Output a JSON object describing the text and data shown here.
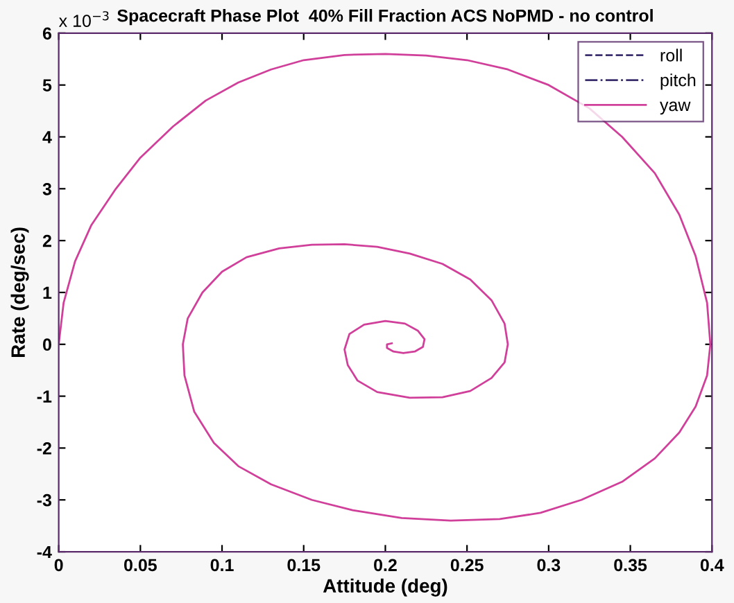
{
  "chart_data": {
    "type": "line",
    "title": "Spacecraft Phase Plot  40% Fill Fraction ACS NoPMD - no control",
    "xlabel": "Attitude (deg)",
    "ylabel": "Rate (deg/sec)",
    "annotations": [
      "x 10$^{−3}$"
    ],
    "xlim": [
      0,
      0.4
    ],
    "ylim": [
      -4,
      6
    ],
    "xticks": [
      0,
      0.05,
      0.1,
      0.15,
      0.2,
      0.25,
      0.3,
      0.35,
      0.4
    ],
    "yticks": [
      -4,
      -3,
      -2,
      -1,
      0,
      1,
      2,
      3,
      4,
      5,
      6
    ],
    "grid": false,
    "legend": "top right",
    "series": [
      {
        "name": "roll",
        "color": "#3c2f6e",
        "line_style": "dashed"
      },
      {
        "name": "pitch",
        "color": "#3c2f6e",
        "line_style": "dashdot"
      },
      {
        "name": "yaw",
        "color": "#d0409a",
        "line_style": "solid",
        "x": [
          0,
          0.003,
          0.01,
          0.02,
          0.035,
          0.05,
          0.07,
          0.09,
          0.11,
          0.13,
          0.15,
          0.175,
          0.2,
          0.225,
          0.25,
          0.275,
          0.3,
          0.325,
          0.345,
          0.365,
          0.38,
          0.39,
          0.397,
          0.399,
          0.397,
          0.39,
          0.38,
          0.365,
          0.345,
          0.32,
          0.295,
          0.27,
          0.24,
          0.21,
          0.18,
          0.155,
          0.13,
          0.11,
          0.095,
          0.083,
          0.077,
          0.076,
          0.079,
          0.088,
          0.1,
          0.115,
          0.135,
          0.155,
          0.175,
          0.195,
          0.215,
          0.235,
          0.252,
          0.265,
          0.273,
          0.275,
          0.273,
          0.265,
          0.252,
          0.235,
          0.215,
          0.195,
          0.183,
          0.177,
          0.175,
          0.178,
          0.187,
          0.2,
          0.212,
          0.22,
          0.224,
          0.223,
          0.218,
          0.211,
          0.205,
          0.201,
          0.201,
          0.204
        ],
        "values": [
          0,
          0.8,
          1.6,
          2.3,
          3.0,
          3.6,
          4.2,
          4.7,
          5.05,
          5.3,
          5.48,
          5.58,
          5.6,
          5.57,
          5.48,
          5.3,
          5.0,
          4.55,
          4.0,
          3.3,
          2.5,
          1.7,
          0.8,
          0,
          -0.6,
          -1.2,
          -1.7,
          -2.2,
          -2.65,
          -3.0,
          -3.25,
          -3.37,
          -3.4,
          -3.35,
          -3.2,
          -3.0,
          -2.7,
          -2.35,
          -1.9,
          -1.3,
          -0.6,
          0,
          0.5,
          1.0,
          1.4,
          1.68,
          1.85,
          1.92,
          1.93,
          1.88,
          1.75,
          1.55,
          1.25,
          0.85,
          0.4,
          0,
          -0.35,
          -0.65,
          -0.9,
          -1.02,
          -1.03,
          -0.92,
          -0.7,
          -0.4,
          -0.1,
          0.2,
          0.38,
          0.45,
          0.4,
          0.26,
          0.1,
          -0.05,
          -0.14,
          -0.17,
          -0.14,
          -0.07,
          0,
          0.02
        ]
      }
    ]
  }
}
